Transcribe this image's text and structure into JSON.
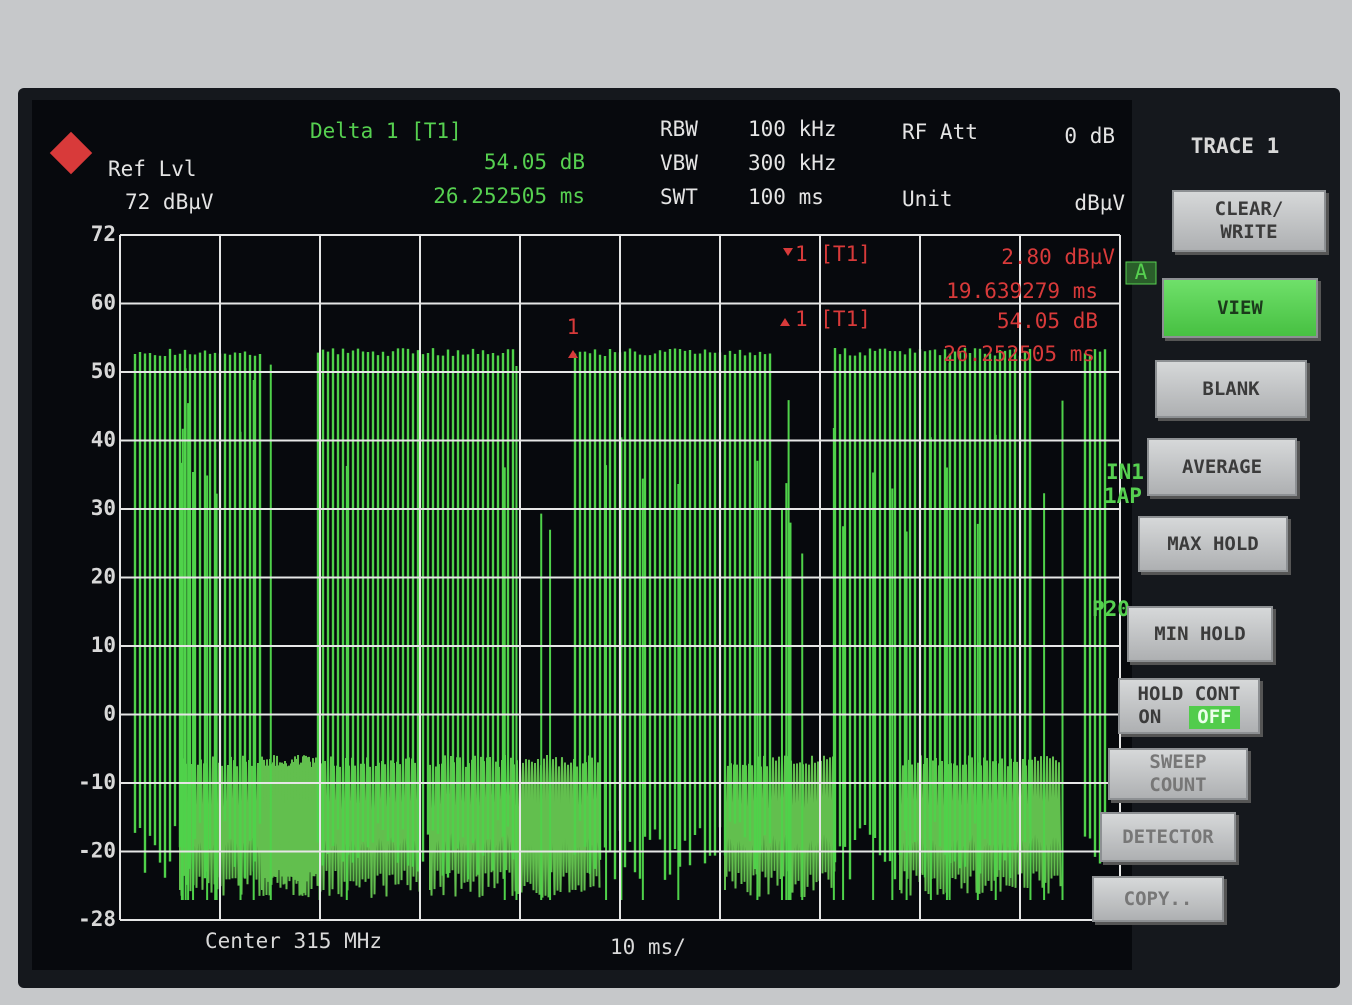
{
  "header": {
    "ref_lvl": "Ref Lvl",
    "ref_value": "72 dBµV",
    "delta": "Delta 1 [T1]",
    "delta_level": "54.05 dB",
    "delta_time": "26.252505 ms",
    "rbw": "RBW",
    "rbw_value": "100 kHz",
    "vbw": "VBW",
    "vbw_value": "300 kHz",
    "swt": "SWT",
    "swt_value": "100 ms",
    "rf_att": "RF Att",
    "rf_att_value": "0 dB",
    "unit": "Unit",
    "unit_value": "dBµV"
  },
  "markers": {
    "m1_name": "1 [T1]",
    "m1_level": "2.80 dBµV",
    "m1_time": "19.639279 ms",
    "d1_name": "1 [T1]",
    "d1_level": "54.05 dB",
    "d1_time": "26.252505 ms"
  },
  "plot": {
    "y_labels": [
      "72",
      "60",
      "50",
      "40",
      "30",
      "20",
      "10",
      "0",
      "-10",
      "-20",
      "-28"
    ],
    "marker_label": "1",
    "side_a": "A",
    "side_in1": "IN1",
    "side_1ap": "1AP",
    "side_p20": "P20"
  },
  "footer": {
    "center": "Center 315 MHz",
    "span": "10 ms/"
  },
  "softkeys": {
    "title": "TRACE 1",
    "buttons": [
      {
        "lines": [
          "CLEAR/",
          "WRITE"
        ]
      },
      {
        "lines": [
          "VIEW"
        ]
      },
      {
        "lines": [
          "BLANK"
        ]
      },
      {
        "lines": [
          "AVERAGE"
        ]
      },
      {
        "lines": [
          "MAX HOLD"
        ]
      },
      {
        "lines": [
          "MIN HOLD"
        ]
      },
      {
        "lines": [
          "HOLD CONT"
        ],
        "options": [
          "ON",
          "OFF"
        ]
      },
      {
        "lines": [
          "SWEEP",
          "COUNT"
        ]
      },
      {
        "lines": [
          "DETECTOR"
        ]
      },
      {
        "lines": [
          "COPY.."
        ]
      }
    ]
  }
}
